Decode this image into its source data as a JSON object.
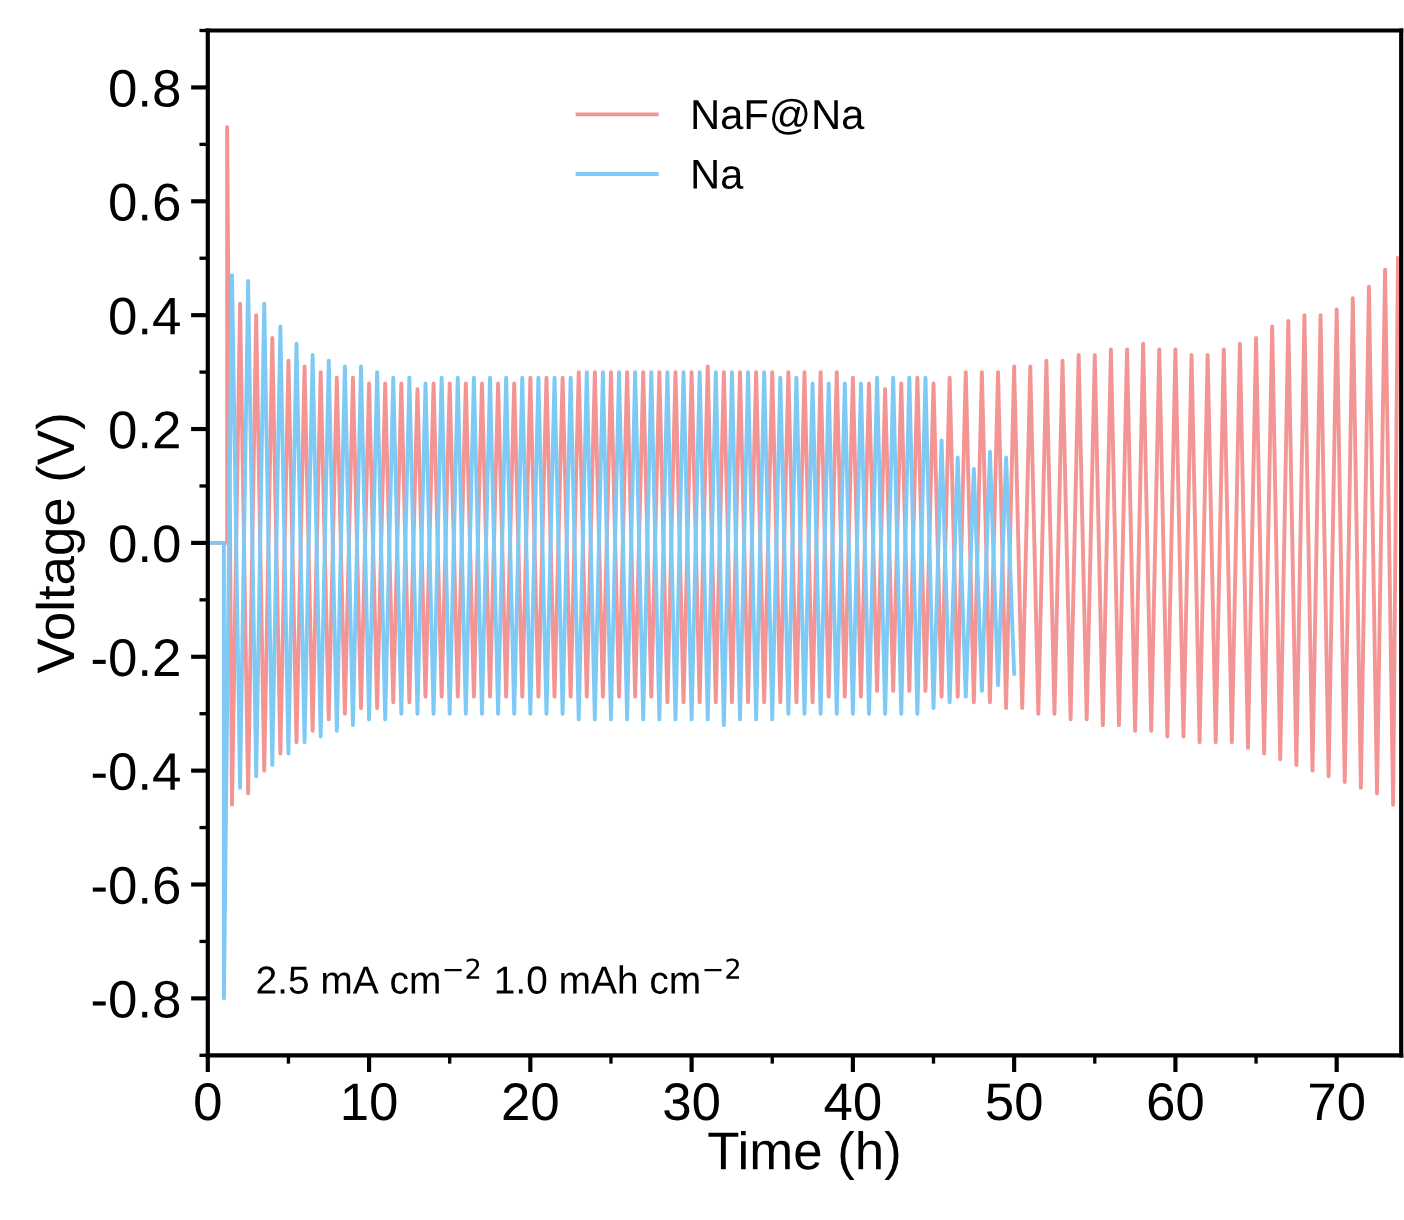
{
  "chart_data": {
    "type": "line",
    "xlabel": "Time (h)",
    "ylabel": "Voltage (V)",
    "xlim": [
      0,
      74
    ],
    "ylim": [
      -0.9,
      0.9
    ],
    "xticks": [
      0,
      10,
      20,
      30,
      40,
      50,
      60,
      70
    ],
    "yticks": [
      -0.8,
      -0.6,
      -0.4,
      -0.2,
      {
        "value": 0,
        "label": "0.0"
      },
      0.2,
      0.4,
      0.6,
      0.8
    ],
    "grid": false,
    "legend": "top",
    "annotations": [
      "2.5 mA cm$^{−2}$ 1.0 mAh cm$^{−2}$"
    ],
    "series": [
      {
        "name": "NaF@Na",
        "color": "#f49595",
        "x": [
          0,
          1.2,
          1.2,
          1.5,
          2,
          2.5,
          3,
          3.5,
          4,
          4.5,
          5,
          5.5,
          6,
          6.5,
          7,
          7.5,
          8,
          8.5,
          9,
          9.5,
          10,
          10.5,
          11,
          11.5,
          12,
          12.5,
          13,
          13.5,
          14,
          14.5,
          15,
          15.5,
          16,
          16.5,
          17,
          17.5,
          18,
          18.5,
          19,
          19.5,
          20,
          20.5,
          21,
          21.5,
          22,
          22.5,
          23,
          23.5,
          24,
          24.5,
          25,
          25.5,
          26,
          26.5,
          27,
          27.5,
          28,
          28.5,
          29,
          29.5,
          30,
          30.5,
          31,
          31.5,
          32,
          32.5,
          33,
          33.5,
          34,
          34.5,
          35,
          35.5,
          36,
          36.5,
          37,
          37.5,
          38,
          38.5,
          39,
          39.5,
          40,
          40.5,
          41,
          41.5,
          42,
          42.5,
          43,
          43.5,
          44,
          44.5,
          45,
          45.5,
          46,
          46.5,
          47,
          47.5,
          48,
          48.5,
          49,
          49.5,
          50,
          50.5,
          51,
          51.5,
          52,
          52.5,
          53,
          53.5,
          54,
          54.5,
          55,
          55.5,
          56,
          56.5,
          57,
          57.5,
          58,
          58.5,
          59,
          59.5,
          60,
          60.5,
          61,
          61.5,
          62,
          62.5,
          63,
          63.5,
          64,
          64.5,
          65,
          65.5,
          66,
          66.5,
          67,
          67.5,
          68,
          68.5,
          69,
          69.5,
          70,
          70.5,
          71,
          71.5,
          72,
          72.5,
          73,
          73.5,
          73.8
        ],
        "values": [
          0,
          0,
          0.73,
          -0.46,
          0.42,
          -0.44,
          0.4,
          -0.4,
          0.36,
          -0.37,
          0.32,
          -0.35,
          0.31,
          -0.33,
          0.3,
          -0.31,
          0.29,
          -0.3,
          0.29,
          -0.29,
          0.28,
          -0.29,
          0.28,
          -0.28,
          0.28,
          -0.28,
          0.27,
          -0.27,
          0.28,
          -0.27,
          0.28,
          -0.27,
          0.28,
          -0.27,
          0.28,
          -0.27,
          0.28,
          -0.27,
          0.28,
          -0.27,
          0.29,
          -0.27,
          0.29,
          -0.27,
          0.29,
          -0.27,
          0.3,
          -0.27,
          0.3,
          -0.27,
          0.3,
          -0.27,
          0.3,
          -0.27,
          0.3,
          -0.27,
          0.3,
          -0.28,
          0.3,
          -0.28,
          0.3,
          -0.28,
          0.31,
          -0.28,
          0.3,
          -0.28,
          0.3,
          -0.28,
          0.3,
          -0.28,
          0.3,
          -0.28,
          0.3,
          -0.28,
          0.3,
          -0.28,
          0.3,
          -0.27,
          0.3,
          -0.27,
          0.29,
          -0.27,
          0.28,
          -0.26,
          0.27,
          -0.26,
          0.28,
          -0.26,
          0.29,
          -0.26,
          0.28,
          -0.27,
          0.29,
          -0.27,
          0.3,
          -0.28,
          0.3,
          -0.28,
          0.3,
          -0.29,
          0.31,
          -0.29,
          0.31,
          -0.3,
          0.32,
          -0.3,
          0.32,
          -0.31,
          0.33,
          -0.31,
          0.33,
          -0.32,
          0.34,
          -0.32,
          0.34,
          -0.33,
          0.35,
          -0.33,
          0.34,
          -0.34,
          0.34,
          -0.34,
          0.33,
          -0.35,
          0.33,
          -0.35,
          0.34,
          -0.35,
          0.35,
          -0.36,
          0.36,
          -0.37,
          0.38,
          -0.38,
          0.39,
          -0.39,
          0.4,
          -0.4,
          0.4,
          -0.41,
          0.41,
          -0.42,
          0.43,
          -0.43,
          0.45,
          -0.44,
          0.48,
          -0.46,
          0.5
        ]
      },
      {
        "name": "Na",
        "color": "#7fcaf5",
        "x": [
          0,
          1.0,
          1.0,
          1.5,
          2,
          2.5,
          3,
          3.5,
          4,
          4.5,
          5,
          5.5,
          6,
          6.5,
          7,
          7.5,
          8,
          8.5,
          9,
          9.5,
          10,
          10.5,
          11,
          11.5,
          12,
          12.5,
          13,
          13.5,
          14,
          14.5,
          15,
          15.5,
          16,
          16.5,
          17,
          17.5,
          18,
          18.5,
          19,
          19.5,
          20,
          20.5,
          21,
          21.5,
          22,
          22.5,
          23,
          23.5,
          24,
          24.5,
          25,
          25.5,
          26,
          26.5,
          27,
          27.5,
          28,
          28.5,
          29,
          29.5,
          30,
          30.5,
          31,
          31.5,
          32,
          32.5,
          33,
          33.5,
          34,
          34.5,
          35,
          35.5,
          36,
          36.5,
          37,
          37.5,
          38,
          38.5,
          39,
          39.5,
          40,
          40.5,
          41,
          41.5,
          42,
          42.5,
          43,
          43.5,
          44,
          44.5,
          45,
          45.5,
          46,
          46.5,
          47,
          47.5,
          48,
          48.5,
          49,
          49.5,
          50
        ],
        "values": [
          0,
          0,
          -0.8,
          0.47,
          -0.43,
          0.46,
          -0.41,
          0.42,
          -0.39,
          0.38,
          -0.37,
          0.35,
          -0.35,
          0.33,
          -0.34,
          0.32,
          -0.33,
          0.31,
          -0.32,
          0.31,
          -0.31,
          0.3,
          -0.31,
          0.29,
          -0.3,
          0.29,
          -0.3,
          0.28,
          -0.3,
          0.29,
          -0.3,
          0.29,
          -0.3,
          0.29,
          -0.3,
          0.29,
          -0.3,
          0.29,
          -0.3,
          0.29,
          -0.3,
          0.29,
          -0.3,
          0.29,
          -0.3,
          0.29,
          -0.31,
          0.3,
          -0.31,
          0.3,
          -0.31,
          0.3,
          -0.31,
          0.3,
          -0.31,
          0.3,
          -0.31,
          0.3,
          -0.31,
          0.3,
          -0.31,
          0.3,
          -0.31,
          0.3,
          -0.32,
          0.3,
          -0.31,
          0.3,
          -0.31,
          0.3,
          -0.31,
          0.29,
          -0.3,
          0.29,
          -0.3,
          0.28,
          -0.3,
          0.28,
          -0.3,
          0.28,
          -0.3,
          0.28,
          -0.3,
          0.29,
          -0.3,
          0.29,
          -0.3,
          0.29,
          -0.3,
          0.29,
          -0.29,
          0.18,
          -0.28,
          0.15,
          -0.27,
          0.13,
          -0.26,
          0.16,
          -0.25,
          0.15,
          -0.23
        ]
      }
    ]
  }
}
